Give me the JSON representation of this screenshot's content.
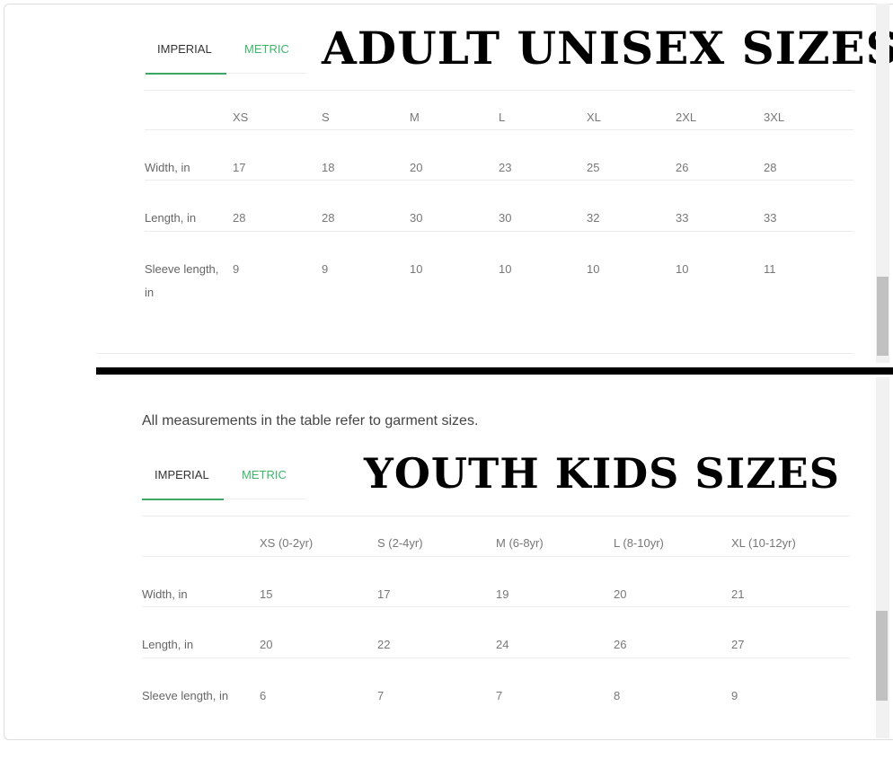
{
  "adult": {
    "title": "ADULT UNISEX SIZES",
    "tabs": [
      {
        "label": "IMPERIAL",
        "active": true
      },
      {
        "label": "METRIC",
        "active": false
      }
    ],
    "columns": [
      "XS",
      "S",
      "M",
      "L",
      "XL",
      "2XL",
      "3XL"
    ],
    "rows": [
      {
        "label": "Width, in",
        "values": [
          "17",
          "18",
          "20",
          "23",
          "25",
          "26",
          "28"
        ]
      },
      {
        "label": "Length, in",
        "values": [
          "28",
          "28",
          "30",
          "30",
          "32",
          "33",
          "33"
        ]
      },
      {
        "label": "Sleeve length, in",
        "values": [
          "9",
          "9",
          "10",
          "10",
          "10",
          "10",
          "11"
        ]
      }
    ]
  },
  "youth": {
    "note": "All measurements in the table refer to garment sizes.",
    "title": "YOUTH KIDS SIZES",
    "tabs": [
      {
        "label": "IMPERIAL",
        "active": true
      },
      {
        "label": "METRIC",
        "active": false
      }
    ],
    "columns": [
      "XS (0-2yr)",
      "S (2-4yr)",
      "M (6-8yr)",
      "L (8-10yr)",
      "XL (10-12yr)"
    ],
    "rows": [
      {
        "label": "Width, in",
        "values": [
          "15",
          "17",
          "19",
          "20",
          "21"
        ]
      },
      {
        "label": "Length, in",
        "values": [
          "20",
          "22",
          "24",
          "26",
          "27"
        ]
      },
      {
        "label": "Sleeve length, in",
        "values": [
          "6",
          "7",
          "7",
          "8",
          "9"
        ]
      }
    ]
  },
  "colors": {
    "accent": "#3da866",
    "metric_tab": "#3bb76a"
  }
}
